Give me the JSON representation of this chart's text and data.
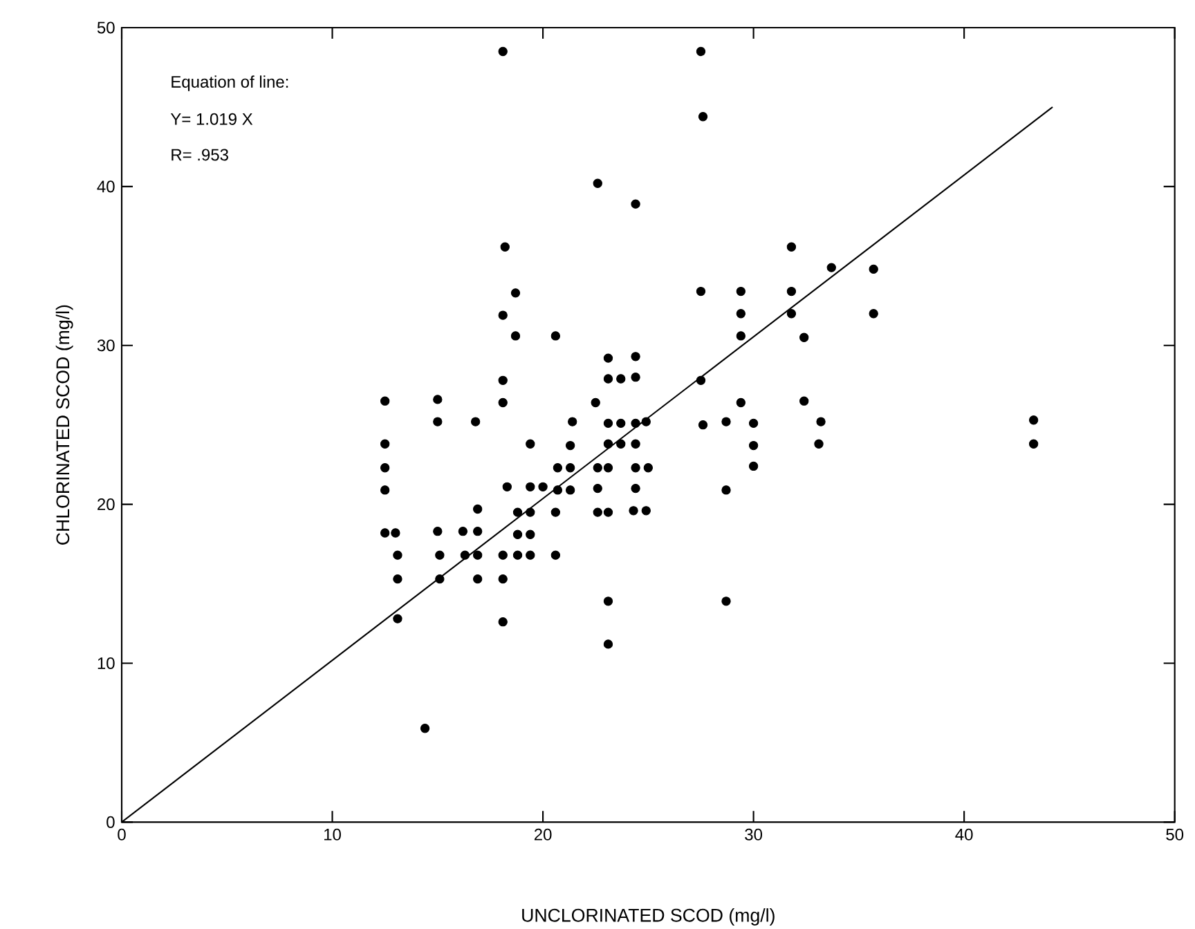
{
  "chart_data": {
    "type": "scatter",
    "xlabel": "UNCLORINATED SCOD (mg/l)",
    "ylabel": "CHLORINATED SCOD (mg/l)",
    "annotations": [
      "Equation of line:",
      "Y= 1.019 X",
      "R= .953"
    ],
    "xlim": [
      0,
      50
    ],
    "ylim": [
      0,
      50
    ],
    "xticks": [
      0,
      10,
      20,
      30,
      40,
      50
    ],
    "yticks": [
      0,
      10,
      20,
      30,
      40,
      50
    ],
    "grid": false,
    "series": [
      {
        "marker": "circle",
        "color": "#000000",
        "x": [
          12.5,
          12.5,
          12.5,
          12.5,
          12.5,
          13.0,
          13.1,
          13.1,
          13.1,
          14.4,
          15.0,
          15.0,
          15.0,
          15.1,
          15.1,
          16.2,
          16.3,
          16.8,
          16.9,
          16.9,
          16.9,
          16.9,
          18.1,
          18.2,
          18.1,
          18.7,
          18.7,
          18.1,
          18.1,
          18.3,
          18.1,
          18.1,
          18.1,
          18.8,
          18.8,
          18.8,
          19.4,
          19.4,
          19.4,
          19.4,
          19.4,
          20.0,
          20.6,
          20.7,
          20.7,
          20.6,
          20.6,
          21.3,
          21.3,
          21.4,
          21.3,
          22.6,
          22.5,
          22.6,
          22.6,
          22.6,
          23.1,
          23.1,
          23.7,
          23.1,
          23.7,
          23.1,
          23.7,
          23.1,
          23.1,
          23.1,
          23.1,
          24.4,
          24.4,
          24.4,
          24.4,
          24.9,
          24.4,
          24.4,
          25.0,
          24.4,
          24.3,
          24.9,
          27.5,
          27.6,
          27.5,
          27.5,
          27.6,
          28.7,
          28.7,
          28.7,
          29.4,
          29.4,
          29.4,
          29.4,
          30.0,
          30.0,
          30.0,
          31.8,
          31.8,
          31.8,
          32.4,
          32.4,
          33.2,
          33.1,
          33.7,
          35.7,
          35.7,
          43.3,
          43.3
        ],
        "values": [
          26.5,
          23.8,
          22.3,
          20.9,
          18.2,
          18.2,
          16.8,
          15.3,
          12.8,
          5.9,
          26.6,
          25.2,
          18.3,
          16.8,
          15.3,
          18.3,
          16.8,
          25.2,
          19.7,
          18.3,
          16.8,
          15.3,
          48.5,
          36.2,
          31.9,
          33.3,
          30.6,
          27.8,
          26.4,
          21.1,
          16.8,
          15.3,
          12.6,
          19.5,
          18.1,
          16.8,
          23.8,
          21.1,
          19.5,
          18.1,
          16.8,
          21.1,
          30.6,
          22.3,
          20.9,
          19.5,
          16.8,
          22.3,
          23.7,
          25.2,
          20.9,
          40.2,
          26.4,
          22.3,
          21.0,
          19.5,
          29.2,
          27.9,
          27.9,
          25.1,
          25.1,
          23.8,
          23.8,
          22.3,
          19.5,
          13.9,
          11.2,
          38.9,
          29.3,
          28.0,
          25.1,
          25.2,
          23.8,
          22.3,
          22.3,
          21.0,
          19.6,
          19.6,
          48.5,
          44.4,
          33.4,
          27.8,
          25.0,
          25.2,
          20.9,
          13.9,
          33.4,
          32.0,
          30.6,
          26.4,
          25.1,
          23.7,
          22.4,
          36.2,
          33.4,
          32.0,
          30.5,
          26.5,
          25.2,
          23.8,
          34.9,
          34.8,
          32.0,
          25.3,
          23.8
        ]
      },
      {
        "type": "line",
        "marker": "none",
        "color": "#000000",
        "line_style": "solid",
        "x": [
          0,
          44.2
        ],
        "values": [
          0,
          45.0
        ]
      }
    ]
  }
}
